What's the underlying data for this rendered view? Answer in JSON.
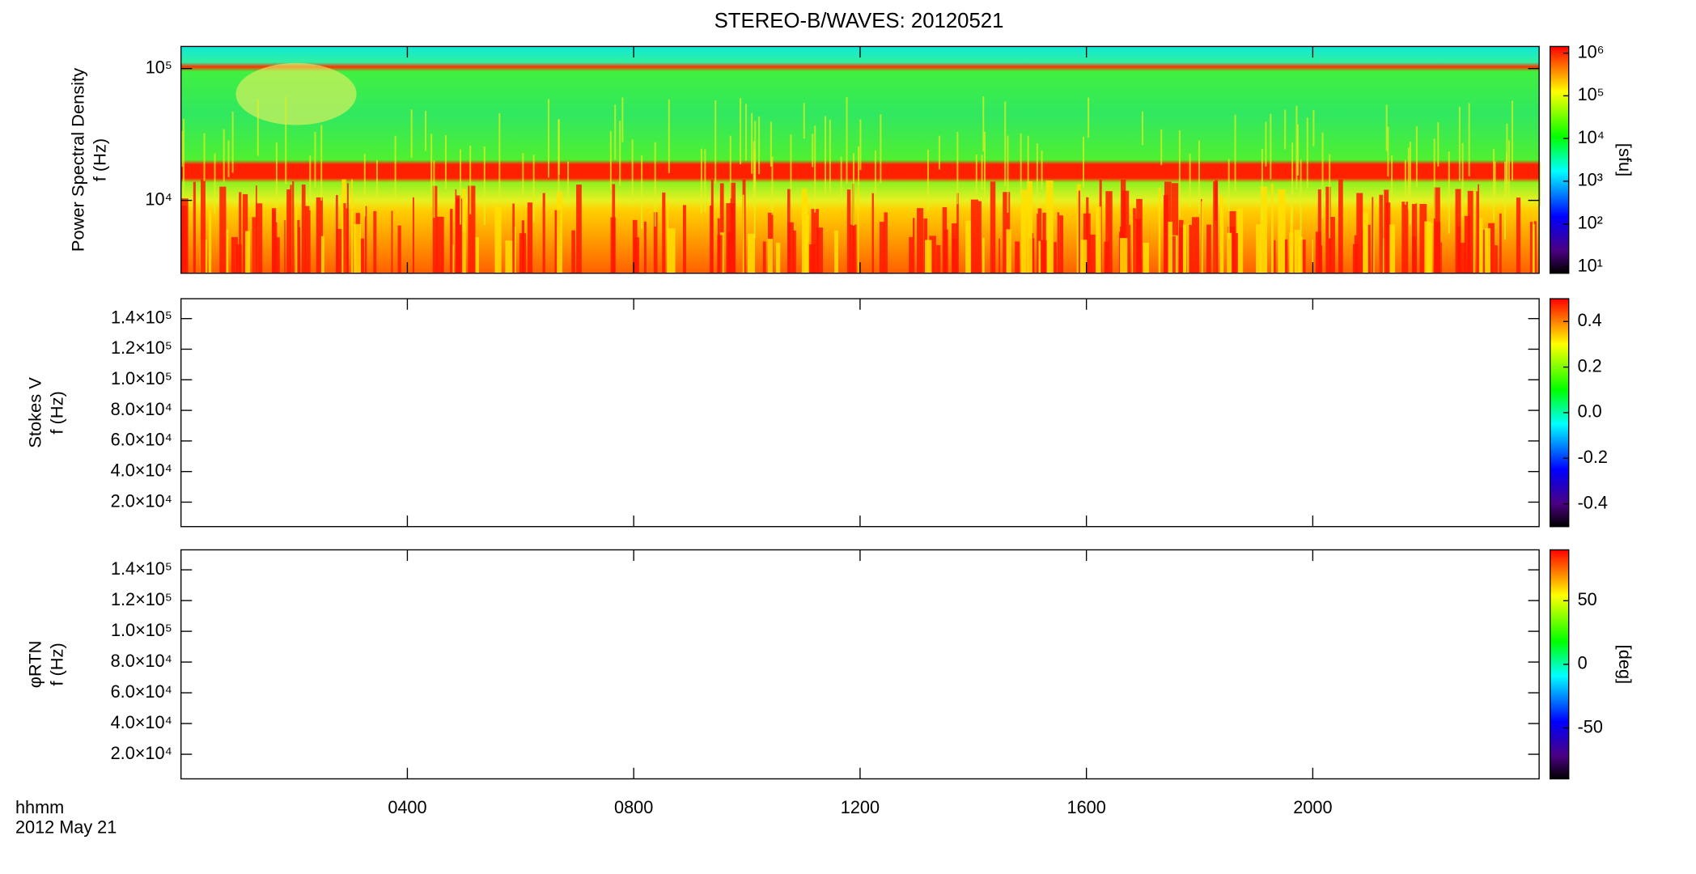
{
  "title": "STEREO-B/WAVES: 20120521",
  "x_label": "hhmm",
  "date_label": "2012 May 21",
  "chart_data": [
    {
      "type": "spectrogram",
      "y_label": "Power Spectral Density",
      "y_unit_label": "f (Hz)",
      "y_log": true,
      "ylim": [
        2800,
        147000
      ],
      "yticks": [
        {
          "value": 10000,
          "label": "10⁴"
        },
        {
          "value": 100000,
          "label": "10⁵"
        }
      ],
      "colorbar": {
        "log": true,
        "lim": [
          7,
          1430000
        ],
        "label": "[sfu]",
        "ticks": [
          {
            "value": 10,
            "label": "10¹"
          },
          {
            "value": 100,
            "label": "10²"
          },
          {
            "value": 1000,
            "label": "10³"
          },
          {
            "value": 10000,
            "label": "10⁴"
          },
          {
            "value": 100000,
            "label": "10⁵"
          },
          {
            "value": 1000000,
            "label": "10⁶"
          }
        ]
      }
    },
    {
      "type": "spectrogram",
      "y_label": "Stokes V",
      "y_unit_label": "f (Hz)",
      "y_log": false,
      "ylim": [
        4000,
        153000
      ],
      "yticks": [
        {
          "value": 20000,
          "label": "2.0×10⁴"
        },
        {
          "value": 40000,
          "label": "4.0×10⁴"
        },
        {
          "value": 60000,
          "label": "6.0×10⁴"
        },
        {
          "value": 80000,
          "label": "8.0×10⁴"
        },
        {
          "value": 100000,
          "label": "1.0×10⁵"
        },
        {
          "value": 120000,
          "label": "1.2×10⁵"
        },
        {
          "value": 140000,
          "label": "1.4×10⁵"
        }
      ],
      "colorbar": {
        "log": false,
        "lim": [
          -0.5,
          0.5
        ],
        "ticks": [
          {
            "value": -0.4,
            "label": "-0.4"
          },
          {
            "value": -0.2,
            "label": "-0.2"
          },
          {
            "value": 0,
            "label": "0.0"
          },
          {
            "value": 0.2,
            "label": "0.2"
          },
          {
            "value": 0.4,
            "label": "0.4"
          }
        ]
      }
    },
    {
      "type": "spectrogram",
      "y_label": "φRTN",
      "y_unit_label": "f (Hz)",
      "y_log": false,
      "ylim": [
        4000,
        153000
      ],
      "yticks": [
        {
          "value": 20000,
          "label": "2.0×10⁴"
        },
        {
          "value": 40000,
          "label": "4.0×10⁴"
        },
        {
          "value": 60000,
          "label": "6.0×10⁴"
        },
        {
          "value": 80000,
          "label": "8.0×10⁴"
        },
        {
          "value": 100000,
          "label": "1.0×10⁵"
        },
        {
          "value": 120000,
          "label": "1.2×10⁵"
        },
        {
          "value": 140000,
          "label": "1.4×10⁵"
        }
      ],
      "colorbar": {
        "log": false,
        "lim": [
          -90,
          90
        ],
        "label": "[deg]",
        "ticks": [
          -50,
          0,
          50
        ]
      },
      "xlim": [
        0,
        24
      ],
      "xticks": [
        {
          "value": 4,
          "label": "0400"
        },
        {
          "value": 8,
          "label": "0800"
        },
        {
          "value": 12,
          "label": "1200"
        },
        {
          "value": 16,
          "label": "1600"
        },
        {
          "value": 20,
          "label": "2000"
        }
      ]
    }
  ]
}
